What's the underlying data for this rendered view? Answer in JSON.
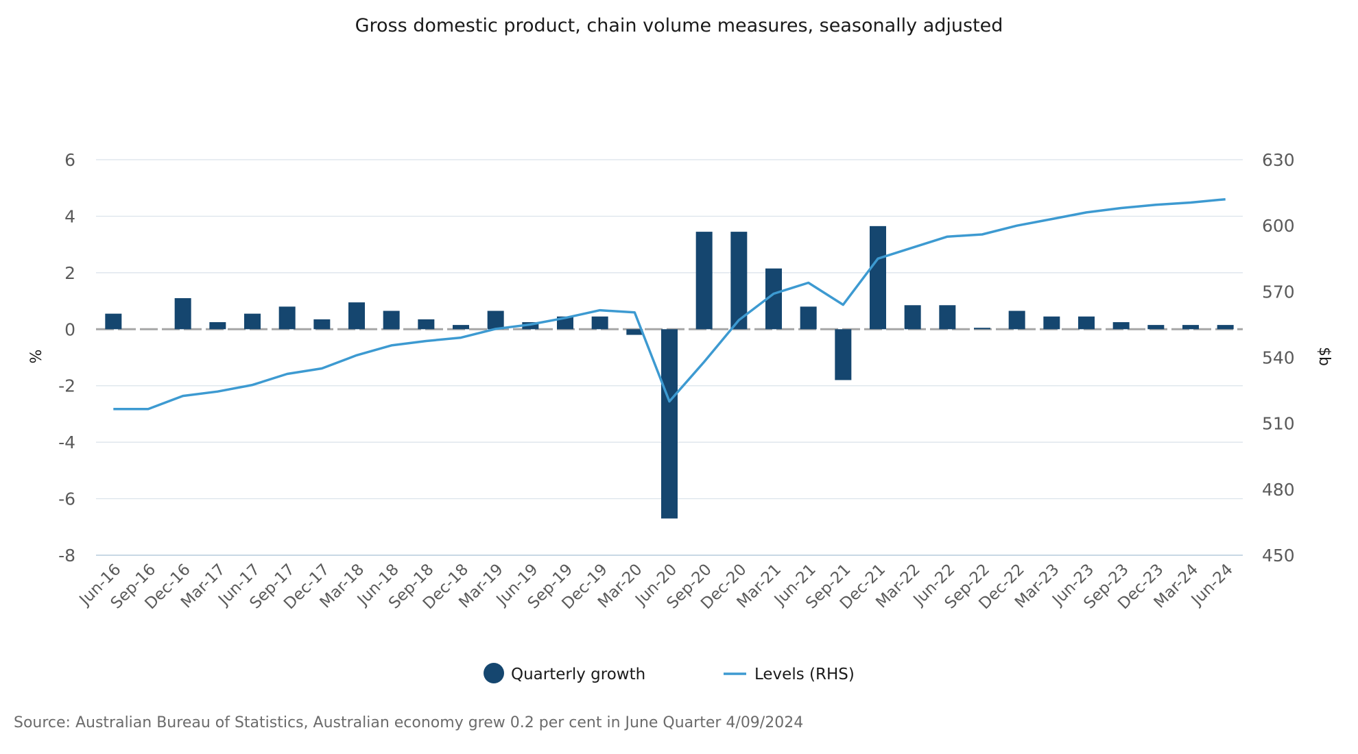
{
  "source": "Source: Australian Bureau of Statistics, Australian economy grew 0.2 per cent in June Quarter 4/09/2024",
  "chart_data": {
    "type": "bar+line",
    "title": "Gross domestic product, chain volume measures, seasonally adjusted",
    "y_left_label": "%",
    "y_right_label": "$b",
    "y_left_ticks": [
      "6",
      "4",
      "2",
      "0",
      "-2",
      "-4",
      "-6",
      "-8"
    ],
    "y_right_ticks": [
      "630",
      "600",
      "570",
      "540",
      "510",
      "480",
      "450"
    ],
    "y_left_range": [
      -8,
      6
    ],
    "y_right_range": [
      450,
      630
    ],
    "grid": true,
    "legend_position": "bottom",
    "categories": [
      "Jun-16",
      "Sep-16",
      "Dec-16",
      "Mar-17",
      "Jun-17",
      "Sep-17",
      "Dec-17",
      "Mar-18",
      "Jun-18",
      "Sep-18",
      "Dec-18",
      "Mar-19",
      "Jun-19",
      "Sep-19",
      "Dec-19",
      "Mar-20",
      "Jun-20",
      "Sep-20",
      "Dec-20",
      "Mar-21",
      "Jun-21",
      "Sep-21",
      "Dec-21",
      "Mar-22",
      "Jun-22",
      "Sep-22",
      "Dec-22",
      "Mar-23",
      "Jun-23",
      "Sep-23",
      "Dec-23",
      "Mar-24",
      "Jun-24"
    ],
    "series": [
      {
        "name": "Quarterly growth",
        "type": "bar",
        "axis": "left",
        "color": "#15466f",
        "values": [
          0.55,
          0.0,
          1.1,
          0.25,
          0.55,
          0.8,
          0.35,
          0.95,
          0.65,
          0.35,
          0.15,
          0.65,
          0.25,
          0.45,
          0.45,
          -0.2,
          -6.7,
          3.45,
          3.45,
          2.15,
          0.8,
          -1.8,
          3.65,
          0.85,
          0.85,
          0.05,
          0.65,
          0.45,
          0.45,
          0.25,
          0.15,
          0.15,
          0.15
        ]
      },
      {
        "name": "Levels (RHS)",
        "type": "line",
        "axis": "right",
        "color": "#3d9ad1",
        "values": [
          516.5,
          516.5,
          522.5,
          524.5,
          527.5,
          532.5,
          535,
          541,
          545.5,
          547.5,
          549,
          553,
          555,
          558,
          561.5,
          560.5,
          520,
          538,
          557,
          569,
          574,
          564,
          585,
          590,
          595,
          596,
          600,
          603,
          606,
          608,
          609.5,
          610.5,
          612
        ]
      }
    ]
  }
}
